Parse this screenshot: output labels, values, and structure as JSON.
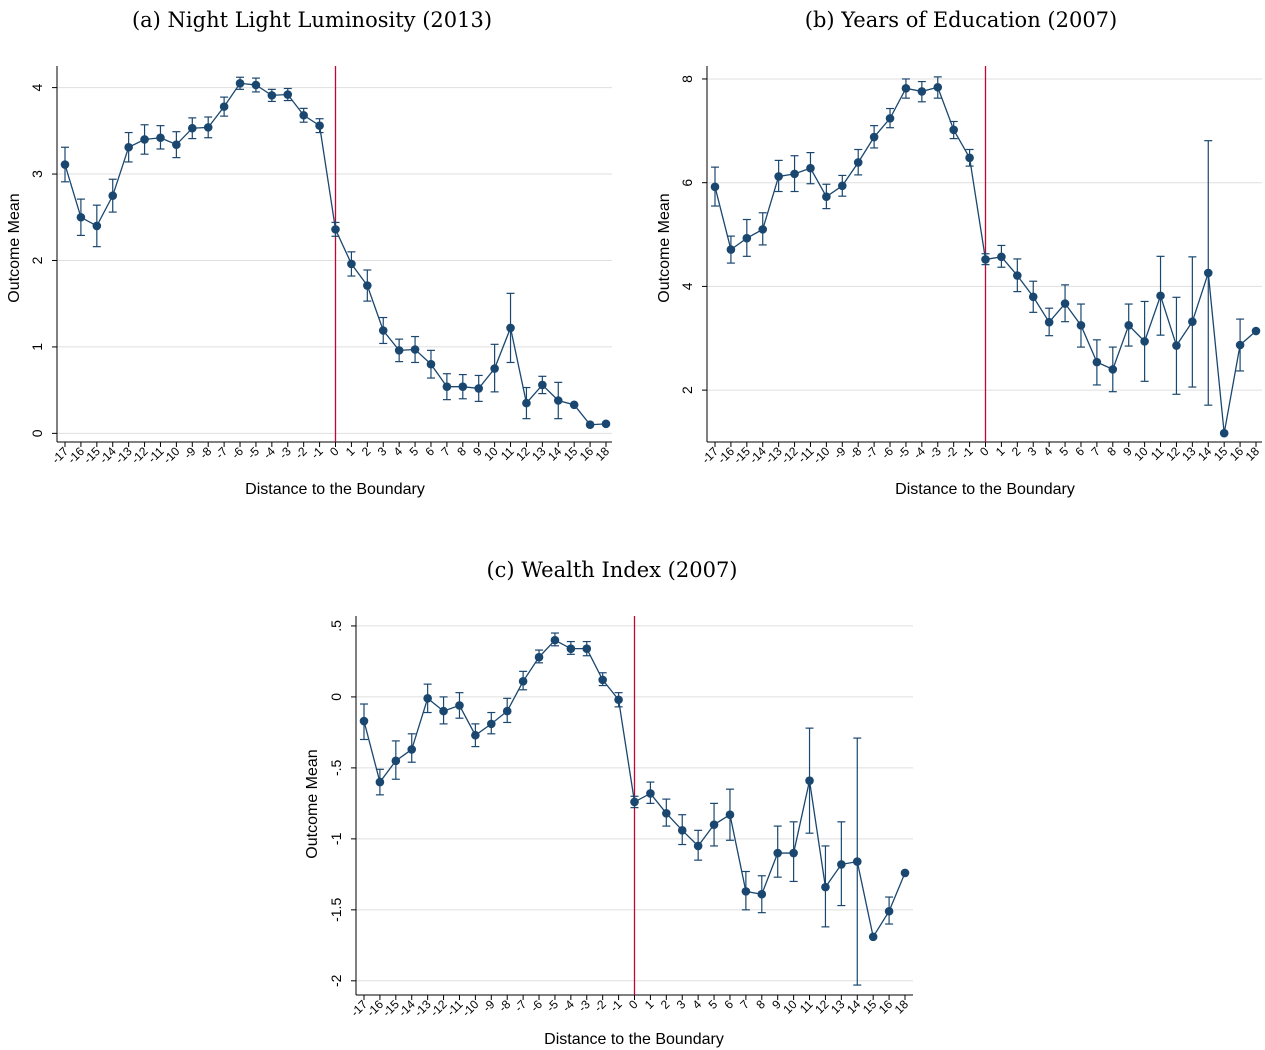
{
  "chart_data": [
    {
      "type": "line",
      "title": "(a) Night Light Luminosity (2013)",
      "xlabel": "Distance to the Boundary",
      "ylabel": "Outcome Mean",
      "x_ticks": [
        "-17",
        "-16",
        "-15",
        "-14",
        "-13",
        "-12",
        "-11",
        "-10",
        "-9",
        "-8",
        "-7",
        "-6",
        "-5",
        "-4",
        "-3",
        "-2",
        "-1",
        "0",
        "1",
        "2",
        "3",
        "4",
        "5",
        "6",
        "7",
        "8",
        "9",
        "10",
        "11",
        "12",
        "13",
        "14",
        "15",
        "16",
        "18"
      ],
      "y_ticks": [
        {
          "value": 0,
          "label": "0"
        },
        {
          "value": 1,
          "label": "1"
        },
        {
          "value": 2,
          "label": "2"
        },
        {
          "value": 3,
          "label": "3"
        },
        {
          "value": 4,
          "label": "4"
        }
      ],
      "ylim": [
        -0.1,
        4.25
      ],
      "grid": true,
      "boundary_x": 0,
      "colors": {
        "series": "#1a476f",
        "boundary": "#c10534"
      },
      "series": [
        {
          "x": [
            -17,
            -16,
            -15,
            -14,
            -13,
            -12,
            -11,
            -10,
            -9,
            -8,
            -7,
            -6,
            -5,
            -4,
            -3,
            -2,
            -1,
            0,
            1,
            2,
            3,
            4,
            5,
            6,
            7,
            8,
            9,
            10,
            11,
            12,
            13,
            14,
            15,
            16,
            18
          ],
          "y": [
            3.11,
            2.5,
            2.4,
            2.75,
            3.31,
            3.4,
            3.42,
            3.34,
            3.53,
            3.54,
            3.78,
            4.05,
            4.03,
            3.91,
            3.92,
            3.68,
            3.56,
            2.36,
            1.96,
            1.71,
            1.19,
            0.96,
            0.97,
            0.8,
            0.54,
            0.54,
            0.52,
            0.75,
            1.22,
            0.35,
            0.56,
            0.38,
            0.33,
            0.1,
            0.11
          ],
          "lo": [
            2.91,
            2.29,
            2.16,
            2.56,
            3.14,
            3.23,
            3.29,
            3.19,
            3.41,
            3.42,
            3.67,
            3.98,
            3.95,
            3.84,
            3.85,
            3.6,
            3.48,
            2.28,
            1.82,
            1.53,
            1.04,
            0.83,
            0.82,
            0.64,
            0.39,
            0.4,
            0.37,
            0.48,
            0.82,
            0.17,
            0.46,
            0.17,
            null,
            null,
            null
          ],
          "hi": [
            3.31,
            2.71,
            2.64,
            2.94,
            3.48,
            3.57,
            3.56,
            3.49,
            3.65,
            3.66,
            3.89,
            4.12,
            4.11,
            3.98,
            3.99,
            3.76,
            3.64,
            2.44,
            2.1,
            1.89,
            1.34,
            1.09,
            1.12,
            0.96,
            0.69,
            0.68,
            0.67,
            1.03,
            1.62,
            0.53,
            0.66,
            0.59,
            null,
            null,
            null
          ]
        }
      ]
    },
    {
      "type": "line",
      "title": "(b) Years of Education (2007)",
      "xlabel": "Distance to the Boundary",
      "ylabel": "Outcome Mean",
      "x_ticks": [
        "-17",
        "-16",
        "-15",
        "-14",
        "-13",
        "-12",
        "-11",
        "-10",
        "-9",
        "-8",
        "-7",
        "-6",
        "-5",
        "-4",
        "-3",
        "-2",
        "-1",
        "0",
        "1",
        "2",
        "3",
        "4",
        "5",
        "6",
        "7",
        "8",
        "9",
        "10",
        "11",
        "12",
        "13",
        "14",
        "15",
        "16",
        "18"
      ],
      "y_ticks": [
        {
          "value": 2,
          "label": "2"
        },
        {
          "value": 4,
          "label": "4"
        },
        {
          "value": 6,
          "label": "6"
        },
        {
          "value": 8,
          "label": "8"
        }
      ],
      "ylim": [
        1.0,
        8.25
      ],
      "grid": true,
      "boundary_x": 0,
      "colors": {
        "series": "#1a476f",
        "boundary": "#c10534"
      },
      "series": [
        {
          "x": [
            -17,
            -16,
            -15,
            -14,
            -13,
            -12,
            -11,
            -10,
            -9,
            -8,
            -7,
            -6,
            -5,
            -4,
            -3,
            -2,
            -1,
            0,
            1,
            2,
            3,
            4,
            5,
            6,
            7,
            8,
            9,
            10,
            11,
            12,
            13,
            14,
            15,
            16,
            18
          ],
          "y": [
            5.92,
            4.71,
            4.93,
            5.1,
            6.12,
            6.17,
            6.28,
            5.73,
            5.94,
            6.39,
            6.88,
            7.24,
            7.82,
            7.76,
            7.84,
            7.02,
            6.48,
            4.52,
            4.57,
            4.21,
            3.8,
            3.31,
            3.67,
            3.25,
            2.54,
            2.4,
            3.25,
            2.94,
            3.82,
            2.86,
            3.32,
            4.26,
            1.17,
            2.87,
            3.14
          ],
          "lo": [
            5.55,
            4.45,
            4.58,
            4.8,
            5.83,
            5.83,
            5.98,
            5.5,
            5.74,
            6.15,
            6.67,
            7.06,
            7.63,
            7.56,
            7.63,
            6.85,
            6.32,
            4.42,
            4.37,
            3.9,
            3.5,
            3.05,
            3.32,
            2.83,
            2.1,
            1.97,
            2.85,
            2.17,
            3.06,
            1.92,
            2.06,
            1.71,
            null,
            2.37,
            null
          ],
          "hi": [
            6.3,
            4.97,
            5.29,
            5.42,
            6.43,
            6.52,
            6.58,
            5.97,
            6.14,
            6.64,
            7.1,
            7.43,
            8.0,
            7.95,
            8.04,
            7.18,
            6.64,
            4.63,
            4.79,
            4.53,
            4.1,
            3.58,
            4.03,
            3.66,
            2.97,
            2.83,
            3.66,
            3.71,
            4.58,
            3.79,
            4.57,
            6.81,
            null,
            3.37,
            null
          ]
        }
      ]
    },
    {
      "type": "line",
      "title": "(c) Wealth Index (2007)",
      "xlabel": "Distance to the Boundary",
      "ylabel": "Outcome Mean",
      "x_ticks": [
        "-17",
        "-16",
        "-15",
        "-14",
        "-13",
        "-12",
        "-11",
        "-10",
        "-9",
        "-8",
        "-7",
        "-6",
        "-5",
        "-4",
        "-3",
        "-2",
        "-1",
        "0",
        "1",
        "2",
        "3",
        "4",
        "5",
        "6",
        "7",
        "8",
        "9",
        "10",
        "11",
        "12",
        "13",
        "14",
        "15",
        "16",
        "18"
      ],
      "y_ticks": [
        {
          "value": -2,
          "label": "-2"
        },
        {
          "value": -1.5,
          "label": "-1.5"
        },
        {
          "value": -1,
          "label": "-1"
        },
        {
          "value": -0.5,
          "label": "-.5"
        },
        {
          "value": 0,
          "label": "0"
        },
        {
          "value": 0.5,
          "label": ".5"
        }
      ],
      "ylim": [
        -2.1,
        0.57
      ],
      "grid": true,
      "boundary_x": 0,
      "colors": {
        "series": "#1a476f",
        "boundary": "#c10534"
      },
      "series": [
        {
          "x": [
            -17,
            -16,
            -15,
            -14,
            -13,
            -12,
            -11,
            -10,
            -9,
            -8,
            -7,
            -6,
            -5,
            -4,
            -3,
            -2,
            -1,
            0,
            1,
            2,
            3,
            4,
            5,
            6,
            7,
            8,
            9,
            10,
            11,
            12,
            13,
            14,
            15,
            16,
            18
          ],
          "y": [
            -0.17,
            -0.6,
            -0.45,
            -0.37,
            -0.01,
            -0.1,
            -0.06,
            -0.27,
            -0.19,
            -0.1,
            0.11,
            0.28,
            0.4,
            0.34,
            0.34,
            0.12,
            -0.02,
            -0.74,
            -0.68,
            -0.82,
            -0.94,
            -1.05,
            -0.9,
            -0.83,
            -1.37,
            -1.39,
            -1.1,
            -1.1,
            -0.59,
            -1.34,
            -1.18,
            -1.16,
            -1.69,
            -1.51,
            -1.24
          ],
          "lo": [
            -0.3,
            -0.69,
            -0.58,
            -0.46,
            -0.11,
            -0.19,
            -0.15,
            -0.35,
            -0.26,
            -0.18,
            0.05,
            0.24,
            0.36,
            0.3,
            0.29,
            0.08,
            -0.07,
            -0.78,
            -0.75,
            -0.91,
            -1.04,
            -1.15,
            -1.05,
            -1.01,
            -1.5,
            -1.52,
            -1.27,
            -1.3,
            -0.96,
            -1.62,
            -1.47,
            -2.03,
            null,
            -1.6,
            null
          ],
          "hi": [
            -0.05,
            -0.51,
            -0.31,
            -0.26,
            0.09,
            0.0,
            0.03,
            -0.19,
            -0.11,
            -0.01,
            0.18,
            0.33,
            0.45,
            0.39,
            0.39,
            0.17,
            0.03,
            -0.7,
            -0.6,
            -0.72,
            -0.83,
            -0.94,
            -0.75,
            -0.65,
            -1.23,
            -1.26,
            -0.91,
            -0.88,
            -0.22,
            -1.05,
            -0.88,
            -0.29,
            null,
            -1.41,
            null
          ]
        }
      ]
    }
  ]
}
